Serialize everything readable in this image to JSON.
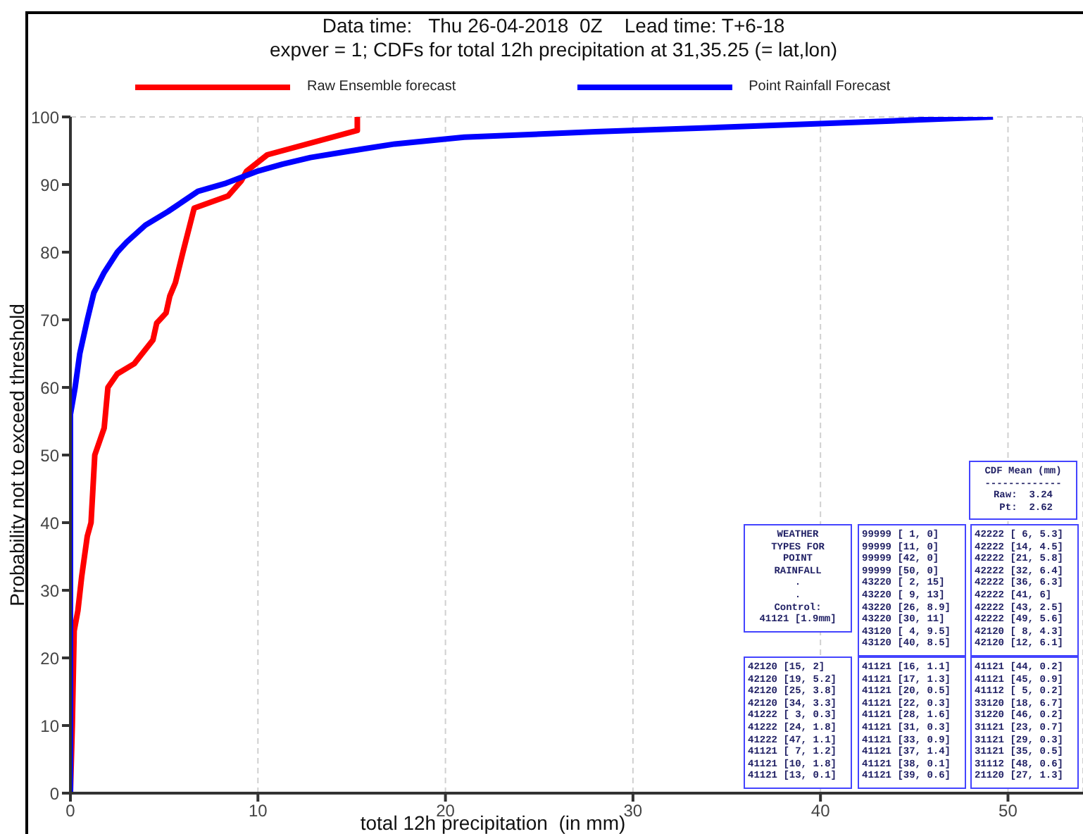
{
  "chart_data": {
    "type": "line",
    "title": "Data time:   Thu 26-04-2018  0Z    Lead time: T+6-18",
    "subtitle": "expver = 1; CDFs for total 12h precipitation at 31,35.25 (= lat,lon)",
    "xlabel": "total 12h precipitation  (in mm)",
    "ylabel": "Probability not to exceed threshold",
    "xlim": [
      0,
      54
    ],
    "xticks": [
      0,
      10,
      20,
      30,
      40,
      50
    ],
    "ylim": [
      0,
      100
    ],
    "yticks": [
      0,
      10,
      20,
      30,
      40,
      50,
      60,
      70,
      80,
      90,
      100
    ],
    "grid": true,
    "legend": "top",
    "marker": "none",
    "line_style": "solid",
    "series": [
      {
        "name": "Raw Ensemble forecast",
        "color": "#ff0000",
        "x": [
          0,
          0.1,
          0.2,
          0.4,
          0.6,
          0.9,
          1.1,
          1.2,
          1.3,
          1.8,
          2.0,
          2.5,
          3.4,
          4.4,
          4.6,
          5.1,
          5.3,
          5.6,
          6.0,
          6.6,
          8.4,
          9.1,
          9.4,
          10.5,
          15.3,
          15.3
        ],
        "values": [
          0,
          10,
          24,
          27,
          32,
          38,
          40,
          45,
          50,
          54,
          60,
          62,
          63.5,
          67,
          69.5,
          71,
          73.5,
          75.5,
          80,
          86.5,
          88.3,
          90.5,
          92,
          94.4,
          98,
          100
        ]
      },
      {
        "name": "Point Rainfall Forecast",
        "color": "#0000ff",
        "x": [
          0,
          0,
          0.25,
          0.5,
          0.9,
          1.25,
          1.8,
          2.5,
          3,
          4,
          5.2,
          6.8,
          8.3,
          10,
          11.3,
          12.8,
          15,
          17.3,
          21,
          28,
          40,
          49.2
        ],
        "values": [
          0,
          56,
          60,
          65,
          70,
          74,
          77,
          80,
          81.5,
          84,
          86,
          89,
          90.2,
          92,
          93,
          94,
          95,
          96,
          97,
          97.8,
          99,
          100
        ]
      }
    ],
    "annotations": [
      "CDF Mean (mm)\n-------------\nRaw:  3.24\n Pt:  2.62",
      "WEATHER\nTYPES FOR\nPOINT\nRAINFALL\n.\n.\nControl:\n41121 [1.9mm]",
      "99999 [ 1, 0]\n99999 [11, 0]\n99999 [42, 0]\n99999 [50, 0]\n43220 [ 2, 15]\n43220 [ 9, 13]\n43220 [26, 8.9]\n43220 [30, 11]\n43120 [ 4, 9.5]\n43120 [40, 8.5]",
      "42222 [ 6, 5.3]\n42222 [14, 4.5]\n42222 [21, 5.8]\n42222 [32, 6.4]\n42222 [36, 6.3]\n42222 [41, 6]\n42222 [43, 2.5]\n42222 [49, 5.6]\n42120 [ 8, 4.3]\n42120 [12, 6.1]",
      "42120 [15, 2]\n42120 [19, 5.2]\n42120 [25, 3.8]\n42120 [34, 3.3]\n41222 [ 3, 0.3]\n41222 [24, 1.8]\n41222 [47, 1.1]\n41121 [ 7, 1.2]\n41121 [10, 1.8]\n41121 [13, 0.1]",
      "41121 [16, 1.1]\n41121 [17, 1.3]\n41121 [20, 0.5]\n41121 [22, 0.3]\n41121 [28, 1.6]\n41121 [31, 0.3]\n41121 [33, 0.9]\n41121 [37, 1.4]\n41121 [38, 0.1]\n41121 [39, 0.6]",
      "41121 [44, 0.2]\n41121 [45, 0.9]\n41112 [ 5, 0.2]\n33120 [18, 6.7]\n31220 [46, 0.2]\n31121 [23, 0.7]\n31121 [29, 0.3]\n31121 [35, 0.5]\n31112 [48, 0.6]\n21120 [27, 1.3]"
    ]
  }
}
